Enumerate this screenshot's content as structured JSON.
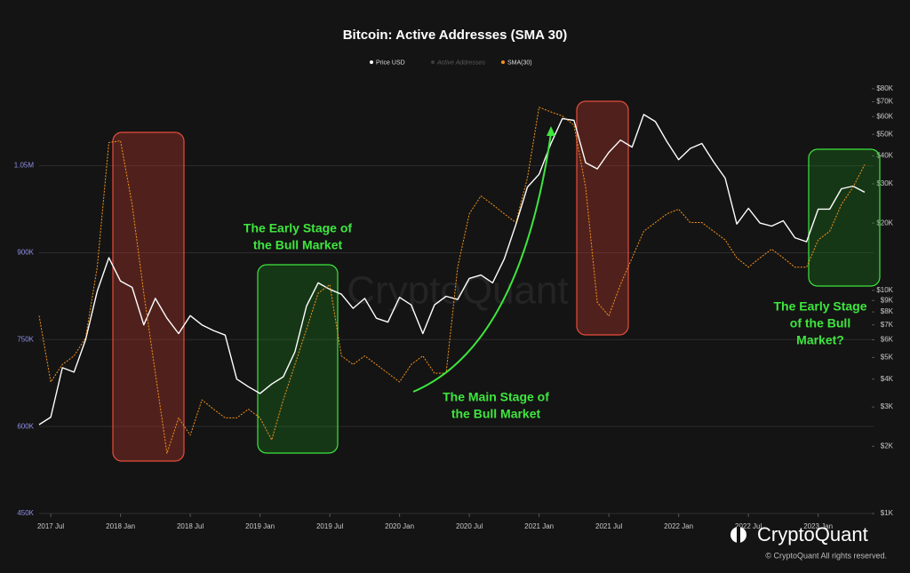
{
  "chart_data": {
    "type": "line",
    "title": "Bitcoin: Active Addresses (SMA 30)",
    "x": [
      "2017-06",
      "2017-07",
      "2017-08",
      "2017-09",
      "2017-10",
      "2017-11",
      "2017-12",
      "2018-01",
      "2018-02",
      "2018-03",
      "2018-04",
      "2018-05",
      "2018-06",
      "2018-07",
      "2018-08",
      "2018-09",
      "2018-10",
      "2018-11",
      "2018-12",
      "2019-01",
      "2019-02",
      "2019-03",
      "2019-04",
      "2019-05",
      "2019-06",
      "2019-07",
      "2019-08",
      "2019-09",
      "2019-10",
      "2019-11",
      "2019-12",
      "2020-01",
      "2020-02",
      "2020-03",
      "2020-04",
      "2020-05",
      "2020-06",
      "2020-07",
      "2020-08",
      "2020-09",
      "2020-10",
      "2020-11",
      "2020-12",
      "2021-01",
      "2021-02",
      "2021-03",
      "2021-04",
      "2021-05",
      "2021-06",
      "2021-07",
      "2021-08",
      "2021-09",
      "2021-10",
      "2021-11",
      "2021-12",
      "2022-01",
      "2022-02",
      "2022-03",
      "2022-04",
      "2022-05",
      "2022-06",
      "2022-07",
      "2022-08",
      "2022-09",
      "2022-10",
      "2022-11",
      "2022-12",
      "2023-01",
      "2023-02",
      "2023-03",
      "2023-04",
      "2023-05"
    ],
    "xlim": [
      "2017-06",
      "2023-05"
    ],
    "xticks": [
      {
        "value": "2017-07",
        "label": "2017 Jul"
      },
      {
        "value": "2018-01",
        "label": "2018 Jan"
      },
      {
        "value": "2018-07",
        "label": "2018 Jul"
      },
      {
        "value": "2019-01",
        "label": "2019 Jan"
      },
      {
        "value": "2019-07",
        "label": "2019 Jul"
      },
      {
        "value": "2020-01",
        "label": "2020 Jan"
      },
      {
        "value": "2020-07",
        "label": "2020 Jul"
      },
      {
        "value": "2021-01",
        "label": "2021 Jan"
      },
      {
        "value": "2021-07",
        "label": "2021 Jul"
      },
      {
        "value": "2022-01",
        "label": "2022 Jan"
      },
      {
        "value": "2022-07",
        "label": "2022 Jul"
      },
      {
        "value": "2023-01",
        "label": "2023 Jan"
      }
    ],
    "ylim": [
      450000,
      1195000
    ],
    "yticks": [
      {
        "value": 450000,
        "label": "450K"
      },
      {
        "value": 600000,
        "label": "600K"
      },
      {
        "value": 750000,
        "label": "750K"
      },
      {
        "value": 900000,
        "label": "900K"
      },
      {
        "value": 1050000,
        "label": "1.05M"
      }
    ],
    "y2lim": [
      1000,
      86000
    ],
    "y2_log": true,
    "y2ticks": [
      {
        "value": 1000,
        "label": "$1K"
      },
      {
        "value": 2000,
        "label": "$2K"
      },
      {
        "value": 3000,
        "label": "$3K"
      },
      {
        "value": 4000,
        "label": "$4K"
      },
      {
        "value": 5000,
        "label": "$5K"
      },
      {
        "value": 6000,
        "label": "$6K"
      },
      {
        "value": 7000,
        "label": "$7K"
      },
      {
        "value": 8000,
        "label": "$8K"
      },
      {
        "value": 9000,
        "label": "$9K"
      },
      {
        "value": 10000,
        "label": "$10K"
      },
      {
        "value": 20000,
        "label": "$20K"
      },
      {
        "value": 30000,
        "label": "$30K"
      },
      {
        "value": 40000,
        "label": "$40K"
      },
      {
        "value": 50000,
        "label": "$50K"
      },
      {
        "value": 60000,
        "label": "$60K"
      },
      {
        "value": 70000,
        "label": "$70K"
      },
      {
        "value": 80000,
        "label": "$80K"
      }
    ],
    "grid": true,
    "series": [
      {
        "name": "Price USD",
        "color": "#ffffff",
        "axis": "y2",
        "values": [
          2500,
          2700,
          4500,
          4300,
          6000,
          9900,
          14000,
          11000,
          10300,
          7000,
          9200,
          7500,
          6400,
          7700,
          7000,
          6600,
          6300,
          4000,
          3700,
          3450,
          3800,
          4100,
          5300,
          8500,
          10800,
          10100,
          9600,
          8300,
          9200,
          7500,
          7200,
          9300,
          8600,
          6400,
          8600,
          9400,
          9100,
          11300,
          11700,
          10800,
          13800,
          19700,
          29000,
          33100,
          45200,
          58800,
          57700,
          37300,
          35000,
          41500,
          47100,
          43800,
          61300,
          57000,
          46300,
          38500,
          43200,
          45500,
          37700,
          31800,
          19800,
          23300,
          20000,
          19400,
          20500,
          17200,
          16500,
          23100,
          23100,
          28500,
          29300,
          27500
        ]
      },
      {
        "name": "Active Addresses",
        "color": "#8a8a8a",
        "visible": false
      },
      {
        "name": "SMA(30)",
        "color": "#f7931a",
        "values": [
          791000,
          677000,
          707000,
          722000,
          753000,
          875000,
          1090000,
          1093000,
          983000,
          830000,
          692000,
          554000,
          615000,
          585000,
          646000,
          630000,
          615000,
          615000,
          630000,
          615000,
          577000,
          646000,
          707000,
          768000,
          830000,
          845000,
          722000,
          707000,
          722000,
          707000,
          692000,
          677000,
          707000,
          722000,
          692000,
          692000,
          875000,
          967000,
          998000,
          983000,
          967000,
          952000,
          1029000,
          1151000,
          1143000,
          1136000,
          1120000,
          1013000,
          814000,
          791000,
          845000,
          891000,
          937000,
          952000,
          967000,
          975000,
          952000,
          952000,
          937000,
          922000,
          891000,
          875000,
          891000,
          906000,
          891000,
          875000,
          875000,
          922000,
          937000,
          983000,
          1013000,
          1052000
        ]
      }
    ],
    "annotations": [
      {
        "lines": [
          "The Early Stage of",
          "the Bull Market"
        ],
        "color": "#3ee63e"
      },
      {
        "lines": [
          "The Main Stage of",
          "the Bull Market"
        ],
        "color": "#3ee63e"
      },
      {
        "lines": [
          "The Early Stage",
          "of the Bull",
          "Market?"
        ],
        "color": "#3ee63e"
      }
    ],
    "watermark": "CryptoQuant",
    "brand": "CryptoQuant",
    "copyright": "© CryptoQuant All rights reserved."
  }
}
